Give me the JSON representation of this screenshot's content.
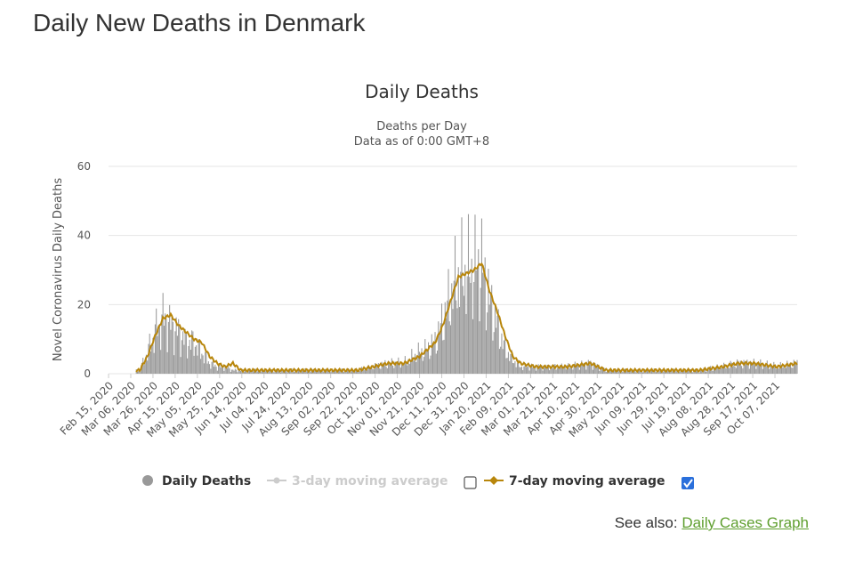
{
  "page": {
    "heading": "Daily New Deaths in Denmark",
    "see_also_label": "See also:",
    "see_also_link": "Daily Cases Graph"
  },
  "colors": {
    "bars": "#999999",
    "ma7": "#b8860b",
    "ma3_disabled": "#cccccc",
    "grid": "#e6e6e6",
    "link": "#5f9f2f",
    "checkbox_checked": "#2a6fdb"
  },
  "chart_data": {
    "type": "bar",
    "title": "Daily Deaths",
    "subtitle": [
      "Deaths per Day",
      "Data as of 0:00 GMT+8"
    ],
    "ylabel": "Novel Coronavirus Daily Deaths",
    "xlabel": "",
    "ylim": [
      0,
      60
    ],
    "yticks": [
      0,
      20,
      40,
      60
    ],
    "grid": true,
    "legend_position": "bottom",
    "x_range": [
      "2020-02-15",
      "2021-10-27"
    ],
    "xtick_labels": [
      "Feb 15, 2020",
      "Mar 06, 2020",
      "Mar 26, 2020",
      "Apr 15, 2020",
      "May 05, 2020",
      "May 25, 2020",
      "Jun 14, 2020",
      "Jul 04, 2020",
      "Jul 24, 2020",
      "Aug 13, 2020",
      "Sep 02, 2020",
      "Sep 22, 2020",
      "Oct 12, 2020",
      "Nov 01, 2020",
      "Nov 21, 2020",
      "Dec 11, 2020",
      "Dec 31, 2020",
      "Jan 20, 2021",
      "Feb 09, 2021",
      "Mar 01, 2021",
      "Mar 21, 2021",
      "Apr 10, 2021",
      "Apr 30, 2021",
      "May 20, 2021",
      "Jun 09, 2021",
      "Jun 29, 2021",
      "Jul 19, 2021",
      "Aug 08, 2021",
      "Aug 28, 2021",
      "Sep 17, 2021",
      "Oct 07, 2021"
    ],
    "daily_deaths_by_week": [
      {
        "week_of": "2020-02-15",
        "value": 0
      },
      {
        "week_of": "2020-03-14",
        "value": 1
      },
      {
        "week_of": "2020-03-21",
        "value": 6
      },
      {
        "week_of": "2020-03-28",
        "value": 12
      },
      {
        "week_of": "2020-04-04",
        "value": 16
      },
      {
        "week_of": "2020-04-11",
        "value": 14
      },
      {
        "week_of": "2020-04-18",
        "value": 12
      },
      {
        "week_of": "2020-04-25",
        "value": 9
      },
      {
        "week_of": "2020-05-02",
        "value": 9
      },
      {
        "week_of": "2020-05-09",
        "value": 6
      },
      {
        "week_of": "2020-05-16",
        "value": 3
      },
      {
        "week_of": "2020-05-23",
        "value": 2
      },
      {
        "week_of": "2020-05-30",
        "value": 2
      },
      {
        "week_of": "2020-06-06",
        "value": 1
      },
      {
        "week_of": "2020-07-18",
        "value": 1
      },
      {
        "week_of": "2020-09-26",
        "value": 1
      },
      {
        "week_of": "2020-10-10",
        "value": 2
      },
      {
        "week_of": "2020-10-24",
        "value": 3
      },
      {
        "week_of": "2020-11-07",
        "value": 3
      },
      {
        "week_of": "2020-11-21",
        "value": 6
      },
      {
        "week_of": "2020-11-28",
        "value": 7
      },
      {
        "week_of": "2020-12-05",
        "value": 9
      },
      {
        "week_of": "2020-12-12",
        "value": 15
      },
      {
        "week_of": "2020-12-19",
        "value": 22
      },
      {
        "week_of": "2020-12-26",
        "value": 28
      },
      {
        "week_of": "2021-01-02",
        "value": 29
      },
      {
        "week_of": "2021-01-09",
        "value": 30
      },
      {
        "week_of": "2021-01-16",
        "value": 31
      },
      {
        "week_of": "2021-01-23",
        "value": 21
      },
      {
        "week_of": "2021-01-30",
        "value": 14
      },
      {
        "week_of": "2021-02-06",
        "value": 7
      },
      {
        "week_of": "2021-02-13",
        "value": 4
      },
      {
        "week_of": "2021-02-20",
        "value": 2
      },
      {
        "week_of": "2021-03-06",
        "value": 2
      },
      {
        "week_of": "2021-04-03",
        "value": 2
      },
      {
        "week_of": "2021-04-24",
        "value": 3
      },
      {
        "week_of": "2021-05-08",
        "value": 1
      },
      {
        "week_of": "2021-07-31",
        "value": 1
      },
      {
        "week_of": "2021-08-21",
        "value": 2
      },
      {
        "week_of": "2021-09-04",
        "value": 3
      },
      {
        "week_of": "2021-09-18",
        "value": 3
      },
      {
        "week_of": "2021-10-09",
        "value": 2
      },
      {
        "week_of": "2021-10-27",
        "value": 3
      }
    ],
    "seven_day_average_by_week": [
      {
        "week_of": "2020-02-15",
        "value": 0
      },
      {
        "week_of": "2020-03-14",
        "value": 1
      },
      {
        "week_of": "2020-03-21",
        "value": 5
      },
      {
        "week_of": "2020-03-28",
        "value": 11
      },
      {
        "week_of": "2020-04-04",
        "value": 16
      },
      {
        "week_of": "2020-04-11",
        "value": 17
      },
      {
        "week_of": "2020-04-18",
        "value": 14
      },
      {
        "week_of": "2020-04-25",
        "value": 12
      },
      {
        "week_of": "2020-05-02",
        "value": 10
      },
      {
        "week_of": "2020-05-09",
        "value": 9
      },
      {
        "week_of": "2020-05-16",
        "value": 5
      },
      {
        "week_of": "2020-05-23",
        "value": 3
      },
      {
        "week_of": "2020-05-30",
        "value": 2
      },
      {
        "week_of": "2020-06-06",
        "value": 3
      },
      {
        "week_of": "2020-06-13",
        "value": 1
      },
      {
        "week_of": "2020-07-18",
        "value": 1
      },
      {
        "week_of": "2020-09-26",
        "value": 1
      },
      {
        "week_of": "2020-10-10",
        "value": 2
      },
      {
        "week_of": "2020-10-24",
        "value": 3
      },
      {
        "week_of": "2020-11-07",
        "value": 3
      },
      {
        "week_of": "2020-11-21",
        "value": 5
      },
      {
        "week_of": "2020-11-28",
        "value": 7
      },
      {
        "week_of": "2020-12-05",
        "value": 9
      },
      {
        "week_of": "2020-12-12",
        "value": 14
      },
      {
        "week_of": "2020-12-19",
        "value": 21
      },
      {
        "week_of": "2020-12-26",
        "value": 28
      },
      {
        "week_of": "2021-01-02",
        "value": 29
      },
      {
        "week_of": "2021-01-09",
        "value": 30
      },
      {
        "week_of": "2021-01-16",
        "value": 32
      },
      {
        "week_of": "2021-01-23",
        "value": 24
      },
      {
        "week_of": "2021-01-30",
        "value": 18
      },
      {
        "week_of": "2021-02-06",
        "value": 11
      },
      {
        "week_of": "2021-02-13",
        "value": 5
      },
      {
        "week_of": "2021-02-20",
        "value": 3
      },
      {
        "week_of": "2021-03-06",
        "value": 2
      },
      {
        "week_of": "2021-04-03",
        "value": 2
      },
      {
        "week_of": "2021-04-24",
        "value": 3
      },
      {
        "week_of": "2021-05-08",
        "value": 1
      },
      {
        "week_of": "2021-07-31",
        "value": 1
      },
      {
        "week_of": "2021-08-21",
        "value": 2
      },
      {
        "week_of": "2021-09-04",
        "value": 3
      },
      {
        "week_of": "2021-09-18",
        "value": 3
      },
      {
        "week_of": "2021-10-09",
        "value": 2
      },
      {
        "week_of": "2021-10-27",
        "value": 3
      }
    ],
    "legend": [
      {
        "label": "Daily Deaths",
        "enabled": true
      },
      {
        "label": "3-day moving average",
        "enabled": false,
        "checked": false
      },
      {
        "label": "7-day moving average",
        "enabled": true,
        "checked": true
      }
    ]
  }
}
